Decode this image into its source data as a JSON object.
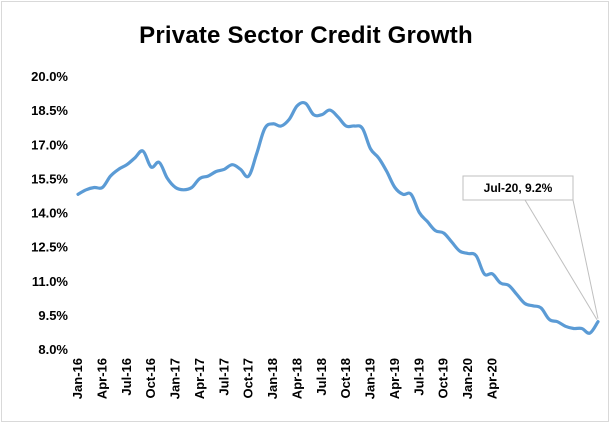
{
  "chart_data": {
    "type": "line",
    "title": "Private Sector Credit Growth",
    "xlabel": "",
    "ylabel": "",
    "ylim": [
      8.0,
      20.0
    ],
    "y_ticks": [
      "8.0%",
      "9.5%",
      "11.0%",
      "12.5%",
      "14.0%",
      "15.5%",
      "17.0%",
      "18.5%",
      "20.0%"
    ],
    "x_tick_labels": [
      "Jan-16",
      "Apr-16",
      "Jul-16",
      "Oct-16",
      "Jan-17",
      "Apr-17",
      "Jul-17",
      "Oct-17",
      "Jan-18",
      "Apr-18",
      "Jul-18",
      "Oct-18",
      "Jan-19",
      "Apr-19",
      "Jul-19",
      "Oct-19",
      "Jan-20",
      "Apr-20"
    ],
    "grid": false,
    "line_color": "#5b9bd5",
    "series": [
      {
        "name": "",
        "values": [
          14.8,
          15.0,
          15.1,
          15.1,
          15.6,
          15.9,
          16.1,
          16.4,
          16.7,
          16.0,
          16.2,
          15.5,
          15.1,
          15.0,
          15.1,
          15.5,
          15.6,
          15.8,
          15.9,
          16.1,
          15.9,
          15.6,
          16.6,
          17.7,
          17.9,
          17.8,
          18.1,
          18.7,
          18.8,
          18.3,
          18.3,
          18.5,
          18.2,
          17.8,
          17.8,
          17.7,
          16.8,
          16.4,
          15.8,
          15.1,
          14.8,
          14.8,
          14.0,
          13.6,
          13.2,
          13.1,
          12.7,
          12.3,
          12.2,
          12.1,
          11.3,
          11.3,
          10.9,
          10.8,
          10.4,
          10.0,
          9.9,
          9.8,
          9.3,
          9.2,
          9.0,
          8.9,
          8.9,
          8.7,
          9.2
        ]
      }
    ],
    "annotation": {
      "text": "Jul-20, 9.2%",
      "target_index": 64
    }
  }
}
